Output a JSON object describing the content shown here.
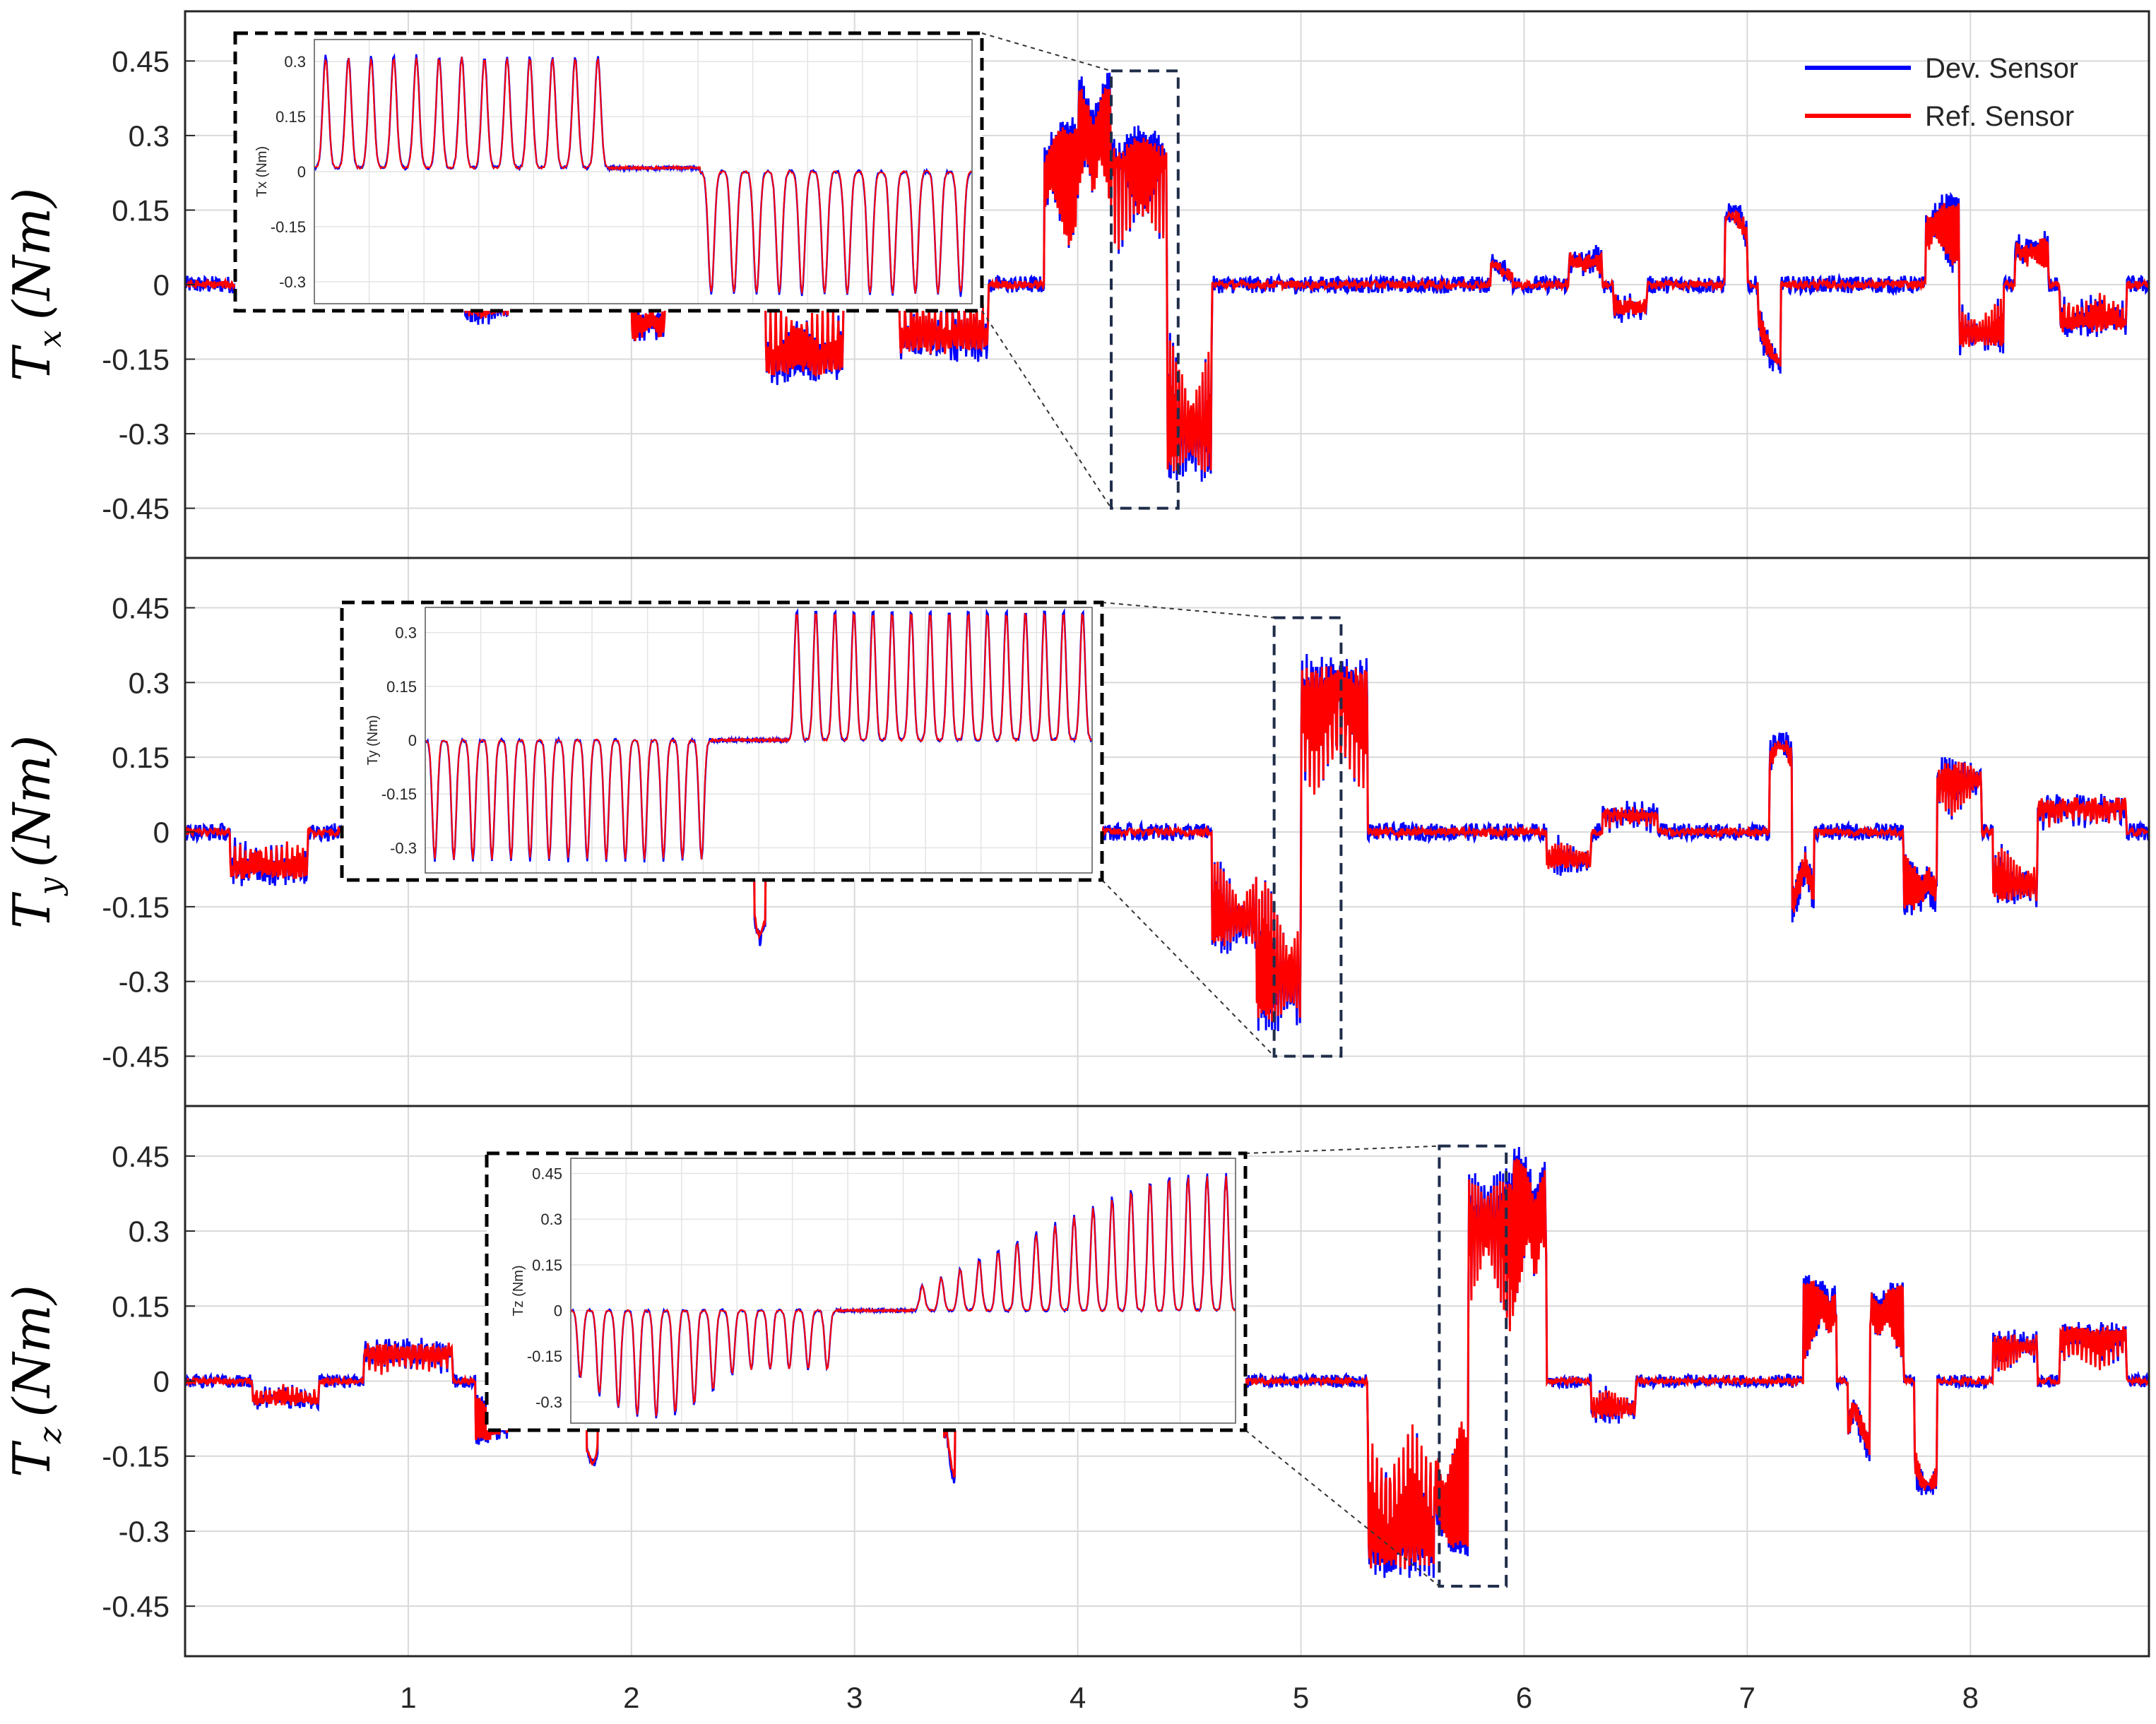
{
  "chart_data": {
    "type": "line",
    "x": {
      "ticks": [
        1,
        2,
        3,
        4,
        5,
        6,
        7,
        8
      ],
      "range": [
        0,
        8.8
      ]
    },
    "legend": {
      "placement": "top-right",
      "entries": [
        {
          "name": "Dev. Sensor",
          "color": "#0000ff"
        },
        {
          "name": "Ref. Sensor",
          "color": "#ff0000"
        }
      ]
    },
    "grid": true,
    "panels": [
      {
        "ylabel": {
          "main": "T",
          "sub": "x",
          "unit": "(Nm)"
        },
        "ylim": [
          -0.55,
          0.55
        ],
        "yticks": [
          "0.45",
          "0.3",
          "0.15",
          "0",
          "-0.15",
          "-0.3",
          "-0.45"
        ],
        "ytick_values": [
          0.45,
          0.3,
          0.15,
          0,
          -0.15,
          -0.3,
          -0.45
        ],
        "noise": 0.008,
        "bursts": [
          {
            "x0": 1.25,
            "x1": 1.45,
            "amp": -0.07
          },
          {
            "x0": 2.0,
            "x1": 2.15,
            "amp": -0.12
          },
          {
            "x0": 2.6,
            "x1": 2.95,
            "amp": -0.2
          },
          {
            "x0": 3.2,
            "x1": 3.6,
            "amp": -0.15
          },
          {
            "x0": 3.85,
            "x1": 4.0,
            "amp": 0.35
          },
          {
            "x0": 4.0,
            "x1": 4.15,
            "amp": 0.45
          },
          {
            "x0": 4.15,
            "x1": 4.4,
            "amp": 0.33
          },
          {
            "x0": 4.4,
            "x1": 4.6,
            "amp": -0.42
          },
          {
            "x0": 5.85,
            "x1": 5.95,
            "amp": 0.05
          },
          {
            "x0": 6.2,
            "x1": 6.35,
            "amp": 0.07
          },
          {
            "x0": 6.4,
            "x1": 6.55,
            "amp": -0.07
          },
          {
            "x0": 6.9,
            "x1": 7.0,
            "amp": 0.16
          },
          {
            "x0": 7.05,
            "x1": 7.15,
            "amp": -0.18
          },
          {
            "x0": 7.8,
            "x1": 7.95,
            "amp": 0.18
          },
          {
            "x0": 7.95,
            "x1": 8.15,
            "amp": -0.14
          },
          {
            "x0": 8.2,
            "x1": 8.35,
            "amp": 0.1
          },
          {
            "x0": 8.4,
            "x1": 8.7,
            "amp": -0.1
          }
        ],
        "zoom_x": [
          4.15,
          4.45
        ],
        "zoom_y": [
          -0.45,
          0.43
        ],
        "inset": {
          "ylabel": "Tx (Nm)",
          "yticks": [
            "0.3",
            "0.15",
            "0",
            "-0.15",
            "-0.3"
          ],
          "ytick_values": [
            0.3,
            0.15,
            0,
            -0.15,
            -0.3
          ],
          "ylim": [
            -0.36,
            0.36
          ],
          "segments": [
            {
              "count": 13,
              "amp": 0.3,
              "baseline": 0.01
            },
            {
              "count": 4,
              "amp": 0,
              "baseline": 0.01
            },
            {
              "count": 12,
              "amp": -0.33,
              "baseline": 0.0
            }
          ]
        }
      },
      {
        "ylabel": {
          "main": "T",
          "sub": "y",
          "unit": "(Nm)"
        },
        "ylim": [
          -0.55,
          0.55
        ],
        "yticks": [
          "0.45",
          "0.3",
          "0.15",
          "0",
          "-0.15",
          "-0.3",
          "-0.45"
        ],
        "ytick_values": [
          0.45,
          0.3,
          0.15,
          0,
          -0.15,
          -0.3,
          -0.45
        ],
        "noise": 0.008,
        "bursts": [
          {
            "x0": 0.2,
            "x1": 0.55,
            "amp": -0.1
          },
          {
            "x0": 2.55,
            "x1": 2.6,
            "amp": -0.23
          },
          {
            "x0": 4.6,
            "x1": 4.8,
            "amp": -0.25
          },
          {
            "x0": 4.8,
            "x1": 5.0,
            "amp": -0.42
          },
          {
            "x0": 5.0,
            "x1": 5.3,
            "amp": 0.37
          },
          {
            "x0": 6.1,
            "x1": 6.3,
            "amp": -0.08
          },
          {
            "x0": 6.35,
            "x1": 6.6,
            "amp": 0.05
          },
          {
            "x0": 7.1,
            "x1": 7.2,
            "amp": 0.2
          },
          {
            "x0": 7.2,
            "x1": 7.3,
            "amp": -0.2
          },
          {
            "x0": 7.7,
            "x1": 7.85,
            "amp": -0.17
          },
          {
            "x0": 7.85,
            "x1": 8.05,
            "amp": 0.15
          },
          {
            "x0": 8.1,
            "x1": 8.3,
            "amp": -0.15
          },
          {
            "x0": 8.3,
            "x1": 8.7,
            "amp": 0.07
          }
        ],
        "zoom_x": [
          4.88,
          5.18
        ],
        "zoom_y": [
          -0.45,
          0.43
        ],
        "inset": {
          "ylabel": "Ty (Nm)",
          "yticks": [
            "0.3",
            "0.15",
            "0",
            "-0.15",
            "-0.3"
          ],
          "ytick_values": [
            0.3,
            0.15,
            0,
            -0.15,
            -0.3
          ],
          "ylim": [
            -0.37,
            0.37
          ],
          "segments": [
            {
              "count": 15,
              "amp": -0.33,
              "baseline": 0.0
            },
            {
              "count": 0,
              "amp": 0,
              "baseline": 0.0
            },
            {
              "count": 16,
              "amp": 0.36,
              "baseline": 0.0
            }
          ]
        }
      },
      {
        "ylabel": {
          "main": "T",
          "sub": "z",
          "unit": "(Nm)"
        },
        "ylim": [
          -0.55,
          0.55
        ],
        "yticks": [
          "0.45",
          "0.3",
          "0.15",
          "0",
          "-0.15",
          "-0.3",
          "-0.45"
        ],
        "ytick_values": [
          0.45,
          0.3,
          0.15,
          0,
          -0.15,
          -0.3,
          -0.45
        ],
        "noise": 0.006,
        "bursts": [
          {
            "x0": 0.3,
            "x1": 0.6,
            "amp": -0.05
          },
          {
            "x0": 0.8,
            "x1": 1.2,
            "amp": 0.08
          },
          {
            "x0": 1.3,
            "x1": 1.45,
            "amp": -0.13
          },
          {
            "x0": 1.8,
            "x1": 1.85,
            "amp": -0.18
          },
          {
            "x0": 3.4,
            "x1": 3.45,
            "amp": -0.22
          },
          {
            "x0": 5.3,
            "x1": 5.6,
            "amp": -0.42
          },
          {
            "x0": 5.6,
            "x1": 5.75,
            "amp": -0.37
          },
          {
            "x0": 5.75,
            "x1": 5.95,
            "amp": 0.45
          },
          {
            "x0": 5.95,
            "x1": 6.1,
            "amp": 0.5
          },
          {
            "x0": 6.3,
            "x1": 6.5,
            "amp": -0.08
          },
          {
            "x0": 7.25,
            "x1": 7.4,
            "amp": 0.22
          },
          {
            "x0": 7.45,
            "x1": 7.55,
            "amp": -0.17
          },
          {
            "x0": 7.55,
            "x1": 7.7,
            "amp": 0.21
          },
          {
            "x0": 7.75,
            "x1": 7.85,
            "amp": -0.24
          },
          {
            "x0": 8.1,
            "x1": 8.3,
            "amp": 0.1
          },
          {
            "x0": 8.4,
            "x1": 8.7,
            "amp": 0.12
          }
        ],
        "zoom_x": [
          5.62,
          5.92
        ],
        "zoom_y": [
          -0.41,
          0.47
        ],
        "inset": {
          "ylabel": "Tz (Nm)",
          "yticks": [
            "0.45",
            "0.3",
            "0.15",
            "0",
            "-0.15",
            "-0.3"
          ],
          "ytick_values": [
            0.45,
            0.3,
            0.15,
            0,
            -0.15,
            -0.3
          ],
          "ylim": [
            -0.37,
            0.5
          ],
          "segments": [
            {
              "count": 14,
              "amp": -0.35,
              "shape": "rise-fall",
              "baseline": 0.0
            },
            {
              "count": 0,
              "amp": 0,
              "baseline": 0.0
            },
            {
              "count": 17,
              "amp": 0.44,
              "shape": "rise",
              "baseline": 0.0
            }
          ]
        }
      }
    ]
  }
}
